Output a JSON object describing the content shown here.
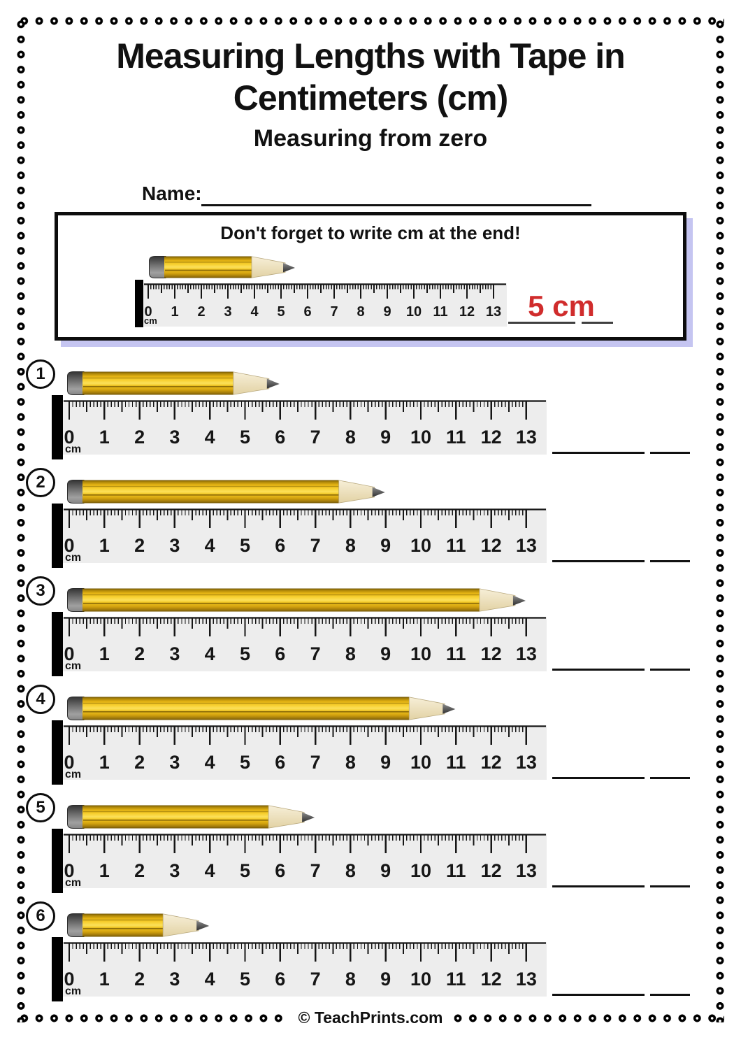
{
  "header": {
    "title_line1": "Measuring Lengths with Tape in",
    "title_line2": "Centimeters (cm)",
    "subtitle": "Measuring from zero",
    "name_label": "Name:"
  },
  "example": {
    "caption": "Don't forget to write cm at the end!",
    "answer_text": "5 cm",
    "pencil_cm": 5
  },
  "ruler": {
    "unit_label": "cm",
    "min": 0,
    "max": 13,
    "numbers": [
      "0",
      "1",
      "2",
      "3",
      "4",
      "5",
      "6",
      "7",
      "8",
      "9",
      "10",
      "11",
      "12",
      "13"
    ],
    "ticks_per_cm": 10
  },
  "questions": [
    {
      "number": "1",
      "pencil_cm": 6
    },
    {
      "number": "2",
      "pencil_cm": 9
    },
    {
      "number": "3",
      "pencil_cm": 13
    },
    {
      "number": "4",
      "pencil_cm": 11
    },
    {
      "number": "5",
      "pencil_cm": 7
    },
    {
      "number": "6",
      "pencil_cm": 4
    }
  ],
  "footer": {
    "credit": "© TeachPrints.com"
  },
  "colors": {
    "answer_red": "#d02c2c",
    "box_shadow_purple": "#c5c5f1",
    "pencil_yellow": "#f2c51d",
    "ruler_bg": "#ededed",
    "ink": "#111111"
  }
}
